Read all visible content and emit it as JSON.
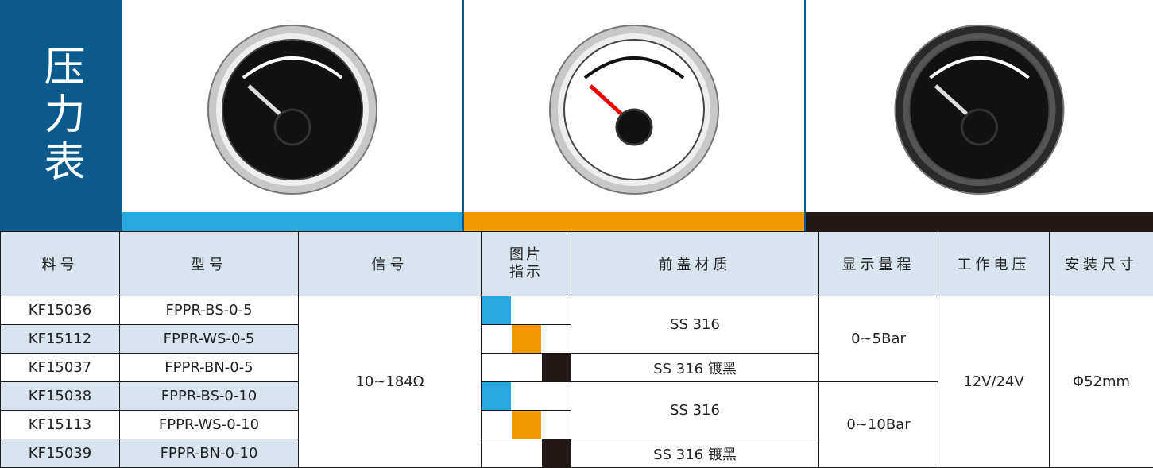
{
  "header": {
    "title": "压力表",
    "variants": [
      {
        "face": "#111111",
        "bezel": "#c8c8c8",
        "strip": "#29a8e0"
      },
      {
        "face": "#ffffff",
        "bezel": "#c8c8c8",
        "strip": "#f39800"
      },
      {
        "face": "#111111",
        "bezel": "#2a2a2a",
        "strip": "#231815"
      }
    ]
  },
  "table": {
    "columns": [
      "料号",
      "型号",
      "信号",
      "图片指示",
      "前盖材质",
      "显示量程",
      "工作电压",
      "安装尺寸"
    ],
    "rows": [
      [
        "KF15036",
        "FPPR-BS-0-5"
      ],
      [
        "KF15112",
        "FPPR-WS-0-5"
      ],
      [
        "KF15037",
        "FPPR-BN-0-5"
      ],
      [
        "KF15038",
        "FPPR-BS-0-10"
      ],
      [
        "KF15113",
        "FPPR-WS-0-10"
      ],
      [
        "KF15039",
        "FPPR-BN-0-10"
      ]
    ],
    "signal": "10~184Ω",
    "covers": [
      "SS 316",
      "SS 316 镀黑",
      "SS 316",
      "SS 316 镀黑"
    ],
    "ranges": [
      "0~5Bar",
      "0~10Bar"
    ],
    "voltage": "12V/24V",
    "size": "Φ52mm"
  }
}
